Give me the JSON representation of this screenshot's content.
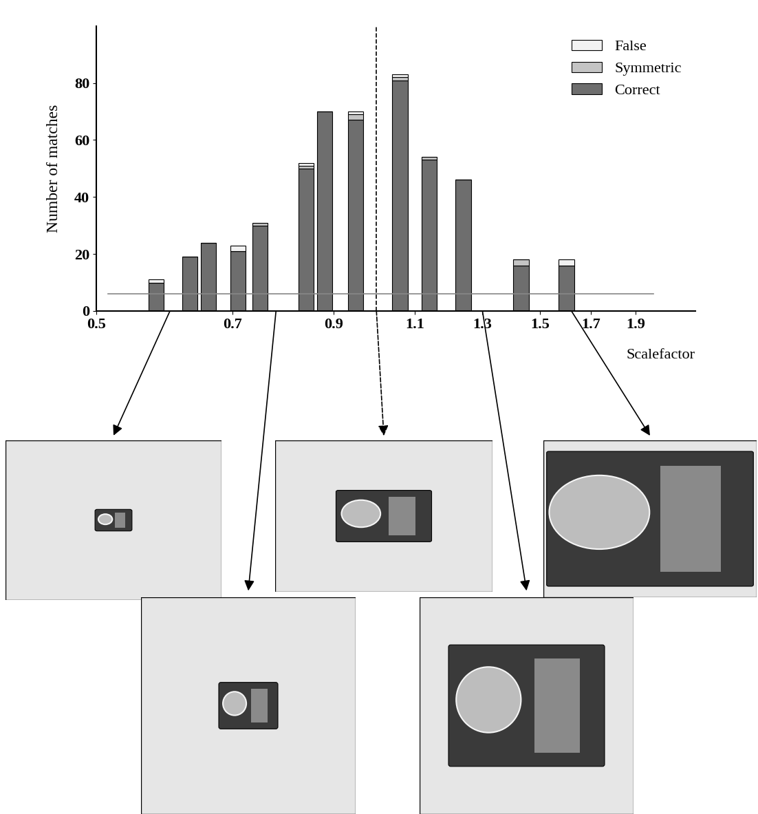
{
  "chart_data": {
    "type": "bar",
    "stacked": true,
    "log": "x",
    "x": [
      0.58,
      0.63,
      0.66,
      0.71,
      0.75,
      0.84,
      0.88,
      0.95,
      1.06,
      1.14,
      1.24,
      1.43,
      1.6
    ],
    "series": [
      {
        "name": "Correct",
        "color": "#6e6e6e",
        "values": [
          10,
          19,
          24,
          21,
          30,
          50,
          70,
          67,
          81,
          53,
          46,
          16,
          16
        ]
      },
      {
        "name": "Symmetric",
        "color": "#c4c4c4",
        "values": [
          0,
          0,
          0,
          0,
          1,
          1,
          0,
          2,
          1,
          1,
          0,
          2,
          0
        ]
      },
      {
        "name": "False",
        "color": "#f2f2f2",
        "values": [
          1,
          0,
          0,
          2,
          0,
          1,
          0,
          1,
          1,
          0,
          0,
          0,
          2
        ]
      }
    ],
    "xlabel": "Scalefactor",
    "ylabel": "Number of matches",
    "xlim": [
      0.5,
      2.2
    ],
    "xticks": [
      0.5,
      0.7,
      0.9,
      1.1,
      1.3,
      1.5,
      1.7,
      1.9
    ],
    "ylim": [
      0,
      100
    ],
    "yticks": [
      0,
      20,
      40,
      60,
      80
    ],
    "threshold": 6,
    "reference_x": 1.0,
    "example_scales": [
      0.6,
      0.78,
      1.0,
      1.3,
      1.62
    ],
    "legend": "upper right",
    "grid": false
  }
}
